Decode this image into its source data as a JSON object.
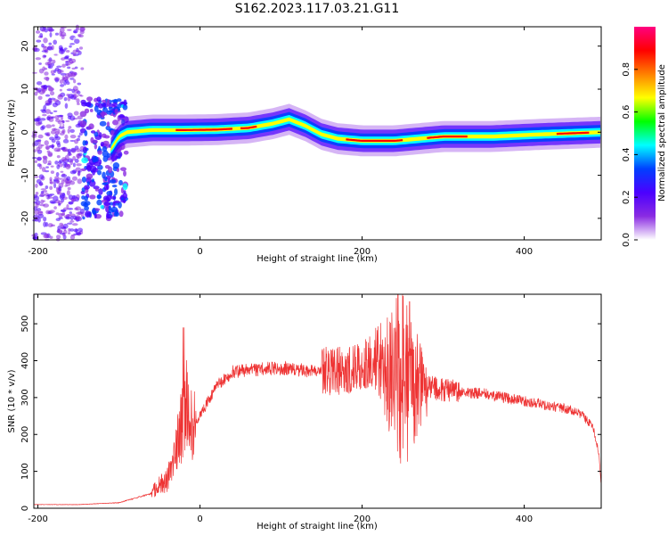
{
  "title": "S162.2023.117.03.21.G11",
  "chart_data": [
    {
      "type": "heatmap",
      "xlabel": "Height of straight line (km)",
      "ylabel": "Frequency (Hz)",
      "xlim": [
        -205,
        495
      ],
      "ylim": [
        -25,
        24.5
      ],
      "xticks": [
        -200,
        0,
        200,
        400
      ],
      "yticks": [
        -20,
        -10,
        0,
        10,
        20
      ],
      "colorbar": {
        "label": "Normalized spectral amplitude",
        "range": [
          0,
          1
        ],
        "ticks": [
          "0.0",
          "0.2",
          "0.4",
          "0.6",
          "0.8"
        ],
        "colors": [
          "#ffffff",
          "#8a2be2",
          "#4b00ff",
          "#0040ff",
          "#00ffff",
          "#00ff00",
          "#ffff00",
          "#ff8000",
          "#ff0000",
          "#ff0080"
        ]
      },
      "ridge": {
        "x": [
          -110,
          -100,
          -90,
          -60,
          -20,
          20,
          60,
          90,
          110,
          130,
          150,
          170,
          200,
          240,
          300,
          360,
          420,
          495
        ],
        "freq": [
          -4,
          -1,
          0,
          0.5,
          0.5,
          0.6,
          1.0,
          2.0,
          3.0,
          1.5,
          -0.5,
          -1.5,
          -2.0,
          -2.0,
          -1.0,
          -1.0,
          -0.5,
          0.0
        ]
      }
    },
    {
      "type": "line",
      "xlabel": "Height of straight line (km)",
      "ylabel": "SNR (10 * v/v)",
      "xlim": [
        -205,
        495
      ],
      "ylim": [
        0,
        580
      ],
      "xticks": [
        -200,
        0,
        200,
        400
      ],
      "yticks": [
        0,
        100,
        200,
        300,
        400,
        500
      ],
      "color": "#ee3333",
      "envelope": {
        "x": [
          -205,
          -150,
          -100,
          -60,
          -40,
          -30,
          -20,
          -15,
          -10,
          0,
          20,
          40,
          60,
          100,
          150,
          180,
          200,
          220,
          240,
          260,
          280,
          300,
          350,
          400,
          450,
          470,
          485,
          492,
          495
        ],
        "snr": [
          10,
          10,
          15,
          40,
          80,
          150,
          250,
          300,
          210,
          250,
          330,
          370,
          375,
          380,
          370,
          375,
          385,
          400,
          370,
          330,
          330,
          320,
          310,
          290,
          270,
          255,
          220,
          150,
          60
        ]
      }
    }
  ]
}
